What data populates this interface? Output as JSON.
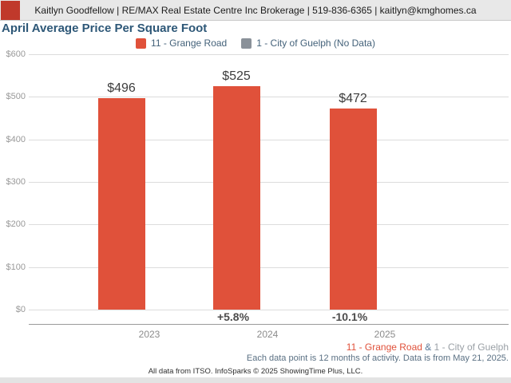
{
  "header": {
    "text": "Kaitlyn Goodfellow | RE/MAX Real Estate Centre Inc Brokerage | 519-836-6365 | kaitlyn@kmghomes.ca",
    "logo_color": "#c0392b"
  },
  "title": "April Average Price Per Square Foot",
  "legend": [
    {
      "label": "11 - Grange Road",
      "color": "#e0513a"
    },
    {
      "label": "1 - City of Guelph (No Data)",
      "color": "#8a9199"
    }
  ],
  "chart_data": {
    "type": "bar",
    "title": "April Average Price Per Square Foot",
    "categories": [
      "2023",
      "2024",
      "2025"
    ],
    "series": [
      {
        "name": "11 - Grange Road",
        "values": [
          496,
          525,
          472
        ],
        "color": "#e0513a"
      },
      {
        "name": "1 - City of Guelph (No Data)",
        "values": [
          null,
          null,
          null
        ],
        "color": "#8a9199"
      }
    ],
    "value_labels": [
      "$496",
      "$525",
      "$472"
    ],
    "pct_change_labels": [
      null,
      "+5.8%",
      "-10.1%"
    ],
    "xlabel": "",
    "ylabel": "",
    "ylim": [
      0,
      600
    ],
    "yticks": [
      "$0",
      "$100",
      "$200",
      "$300",
      "$400",
      "$500",
      "$600"
    ],
    "ytick_values": [
      0,
      100,
      200,
      300,
      400,
      500,
      600
    ],
    "grid": true,
    "legend_position": "top"
  },
  "footer": {
    "series_line": {
      "primary": "11 - Grange Road",
      "separator": " & ",
      "secondary": "1 - City of Guelph"
    },
    "note": "Each data point is 12 months of activity. Data is from May 21, 2025.",
    "credit": "All data from ITSO. InfoSparks © 2025 ShowingTime Plus, LLC."
  },
  "colors": {
    "bar_red": "#e0513a",
    "nodata_gray": "#8a9199",
    "title_blue": "#2d5777",
    "legend_text": "#44627a",
    "gridline": "#dcdcdc",
    "axis_text": "#999999",
    "header_bg": "#e8e8e8"
  }
}
